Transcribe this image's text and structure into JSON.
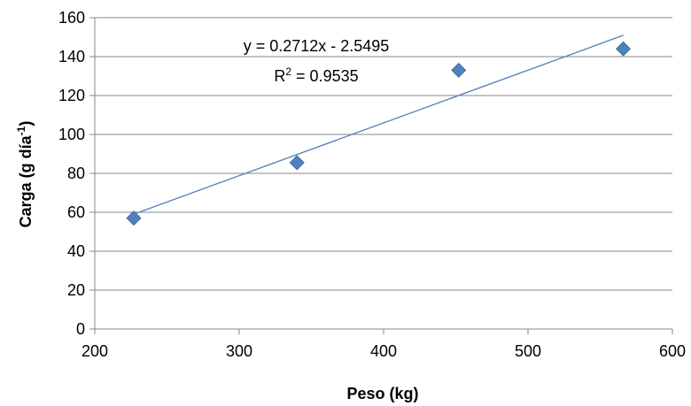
{
  "chart_data": {
    "type": "scatter",
    "title": "",
    "xlabel": "Peso (kg)",
    "ylabel_main": "Carga (g día",
    "ylabel_sup": "-1",
    "ylabel_close": ")",
    "xlim": [
      200,
      600
    ],
    "ylim": [
      0,
      160
    ],
    "xticks": [
      200,
      300,
      400,
      500,
      600
    ],
    "yticks": [
      0,
      20,
      40,
      60,
      80,
      100,
      120,
      140,
      160
    ],
    "grid": "horizontal",
    "marker_color": "#4f81bd",
    "trendline_color": "#4f81bd",
    "points": [
      {
        "x": 227,
        "y": 57
      },
      {
        "x": 340,
        "y": 85.5
      },
      {
        "x": 452,
        "y": 133
      },
      {
        "x": 566,
        "y": 144
      }
    ],
    "trendline": {
      "slope": 0.2712,
      "intercept": -2.5495,
      "x_start": 227,
      "x_end": 566,
      "equation": "y = 0.2712x - 2.5495",
      "r2_prefix": "R",
      "r2_sup": "2",
      "r2_value": " = 0.9535"
    }
  }
}
